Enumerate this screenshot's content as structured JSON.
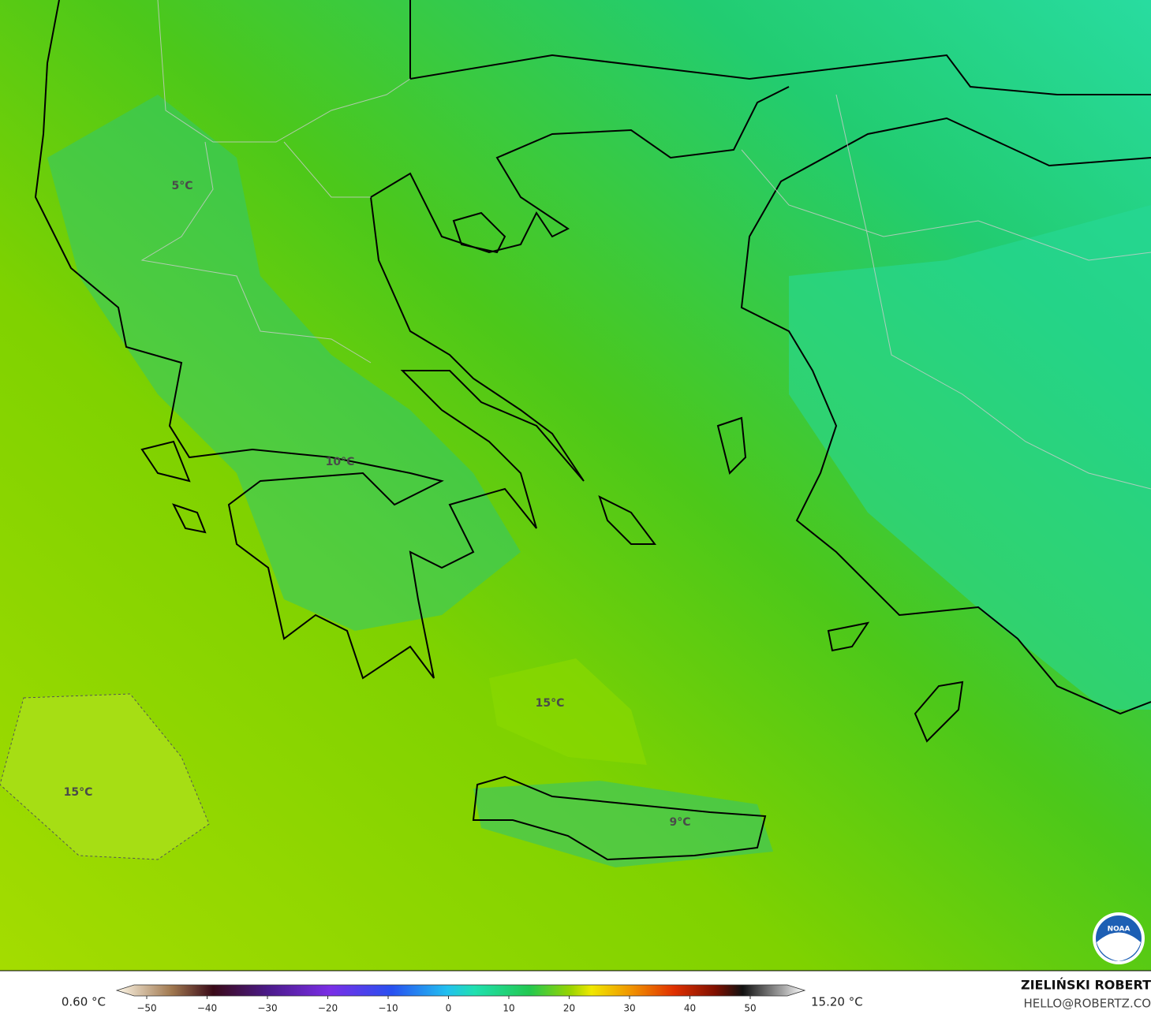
{
  "map": {
    "labels": [
      "5°C",
      "10°C",
      "15°C",
      "15°C",
      "9°C"
    ]
  },
  "logo": {
    "text": "NOAA"
  },
  "colorbar": {
    "min_label": "0.60 °C",
    "max_label": "15.20 °C",
    "ticks": [
      "−50",
      "−40",
      "−30",
      "−20",
      "−10",
      "0",
      "10",
      "20",
      "30",
      "40",
      "50"
    ]
  },
  "footer": {
    "author": "ZIELIŃSKI ROBERT",
    "email": "HELLO@ROBERTZ.CO"
  }
}
